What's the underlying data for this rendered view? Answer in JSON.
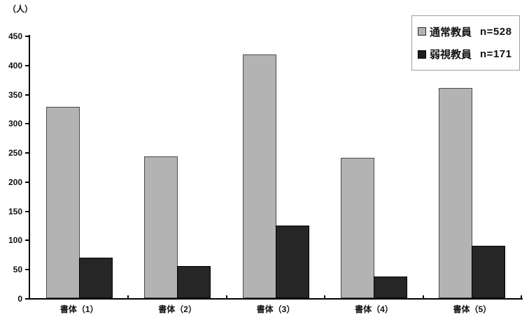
{
  "unit_label": "（人）",
  "chart_data": {
    "type": "bar",
    "title": "",
    "xlabel": "",
    "ylabel": "（人）",
    "categories": [
      "書体（1）",
      "書体（2）",
      "書体（3）",
      "書体（4）",
      "書体（5）"
    ],
    "series": [
      {
        "name": "通常教員",
        "n": "n=528",
        "color": "#b3b3b3",
        "border_color": "#4a4a4a",
        "values": [
          328,
          243,
          418,
          240,
          360
        ]
      },
      {
        "name": "弱視教員",
        "n": "n=171",
        "color": "#262626",
        "border_color": "#000000",
        "values": [
          70,
          55,
          125,
          37,
          90
        ]
      }
    ],
    "ylim": [
      0,
      450
    ],
    "ytick_step": 50,
    "ytick_labels": [
      "0",
      "50",
      "100",
      "150",
      "200",
      "250",
      "300",
      "350",
      "400",
      "450"
    ],
    "grid": false,
    "legend_position": "top-right",
    "plot_background": "#ffffff"
  }
}
